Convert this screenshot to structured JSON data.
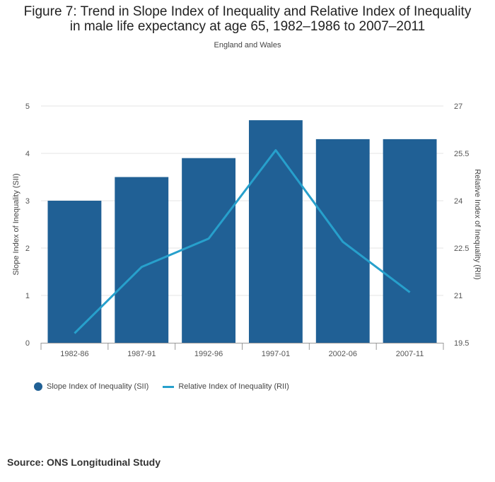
{
  "header": {
    "title_line1": "Figure 7: Trend in Slope Index of Inequality and Relative Index of Inequality",
    "title_line2": "in male life expectancy at age 65, 1982–1986 to 2007–2011",
    "subtitle": "England and Wales"
  },
  "footer": {
    "source": "Source: ONS Longitudinal Study"
  },
  "colors": {
    "bar": "#206095",
    "line": "#27a0cc",
    "grid": "#e5e5e5",
    "axis": "#999999"
  },
  "chart_data": {
    "type": "bar",
    "categories": [
      "1982-86",
      "1987-91",
      "1992-96",
      "1997-01",
      "2002-06",
      "2007-11"
    ],
    "series": [
      {
        "name": "Slope Index of Inequality (SII)",
        "type": "bar",
        "axis": "left",
        "values": [
          3.0,
          3.5,
          3.9,
          4.7,
          4.3,
          4.3
        ]
      },
      {
        "name": "Relative Index of Inequality (RII)",
        "type": "line",
        "axis": "right",
        "values": [
          19.8,
          21.9,
          22.8,
          25.6,
          22.7,
          21.1
        ]
      }
    ],
    "ylabel": "Slope Index of Inequality (SII)",
    "y2label": "Relative Index of Inequality (RII)",
    "ylim": [
      0,
      5
    ],
    "y2lim": [
      19.5,
      27
    ],
    "yticks": [
      "0",
      "1",
      "2",
      "3",
      "4",
      "5"
    ],
    "y2ticks": [
      "19.5",
      "21",
      "22.5",
      "24",
      "25.5",
      "27"
    ],
    "grid": true,
    "legend_position": "bottom-left"
  }
}
